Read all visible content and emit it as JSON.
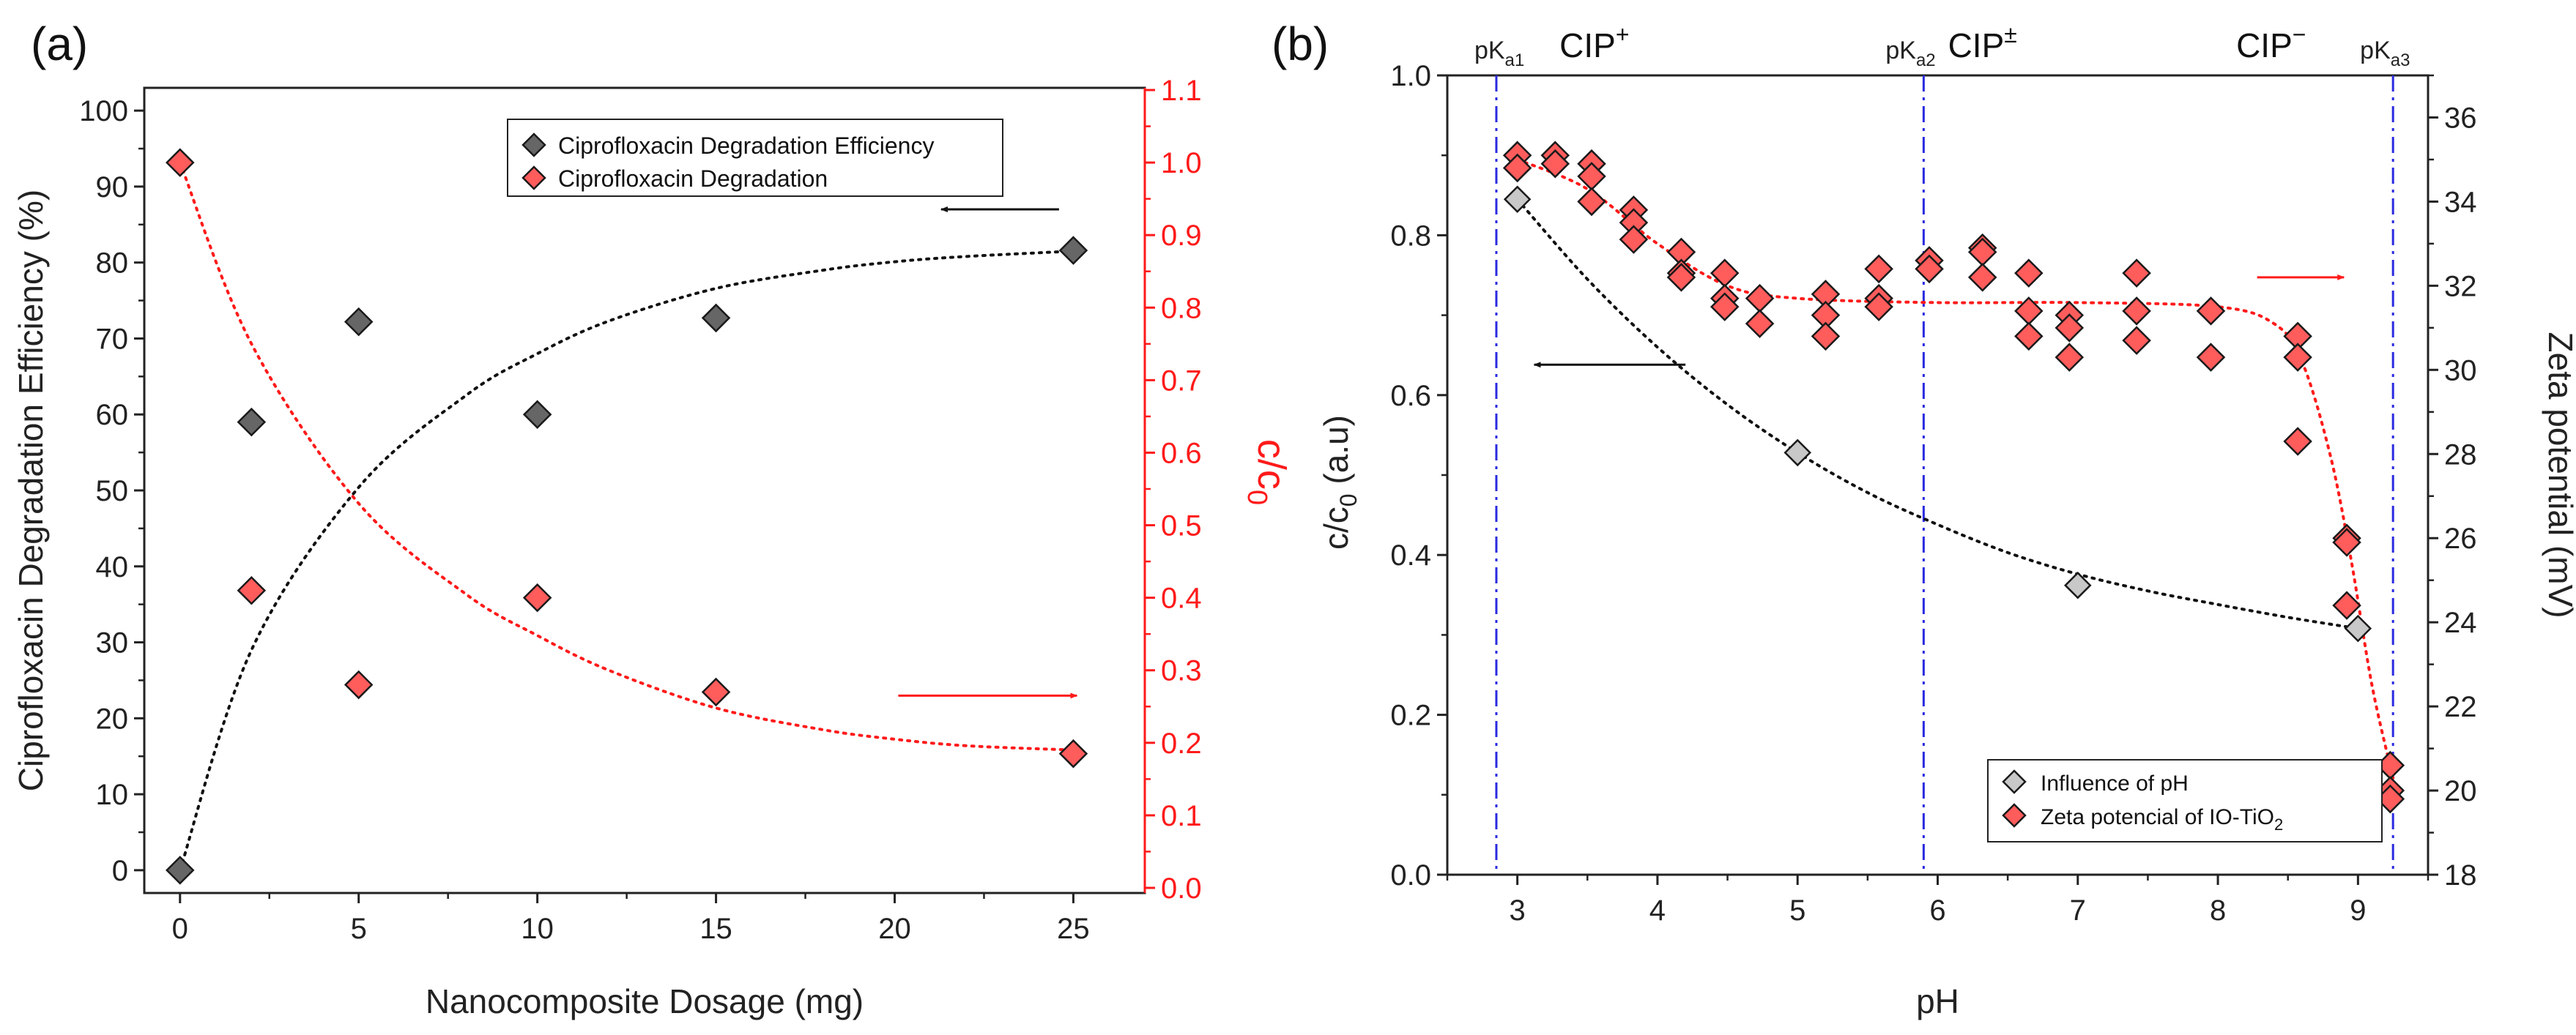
{
  "panels": {
    "a": {
      "label": "(a)"
    },
    "b": {
      "label": "(b)"
    }
  },
  "colors": {
    "black": "#111111",
    "red": "#ff1a1a",
    "dark_marker": "#666666",
    "red_marker": "#ff5c5c",
    "blue": "#2a2ae0",
    "grey_marker": "#c8c8c8"
  },
  "chart_data": [
    {
      "id": "a",
      "type": "scatter",
      "title": "",
      "xlabel": "Nanocomposite Dosage (mg)",
      "ylabel": "Ciprofloxacin Degradation Efficiency (%)",
      "ylabel_right_main": "c/c",
      "ylabel_right_sub": "0",
      "xlim": [
        -1,
        27
      ],
      "ylim": [
        -3,
        103
      ],
      "ylim_right": [
        0,
        1.1
      ],
      "x_ticks": [
        "0",
        "5",
        "10",
        "15",
        "20",
        "25"
      ],
      "y_ticks": [
        "0",
        "10",
        "20",
        "30",
        "40",
        "50",
        "60",
        "70",
        "80",
        "90",
        "100"
      ],
      "y_right_ticks": [
        "0.0",
        "0.1",
        "0.2",
        "0.3",
        "0.4",
        "0.5",
        "0.6",
        "0.7",
        "0.8",
        "0.9",
        "1.0",
        "1.1"
      ],
      "legend_position": "top-center",
      "series": [
        {
          "name": "Ciprofloxacin Degradation Efficiency",
          "axis": "left",
          "marker": "diamond",
          "x": [
            0,
            2,
            5,
            10,
            15,
            25
          ],
          "y": [
            0,
            59,
            72.2,
            60,
            72.7,
            81.6
          ],
          "fit": {
            "x": [
              0,
              2,
              5,
              8,
              10,
              12,
              15,
              18,
              20,
              22,
              25
            ],
            "y": [
              0,
              29,
              50.4,
              62.5,
              68,
              72.3,
              76.6,
              79,
              80.1,
              80.8,
              81.5
            ]
          }
        },
        {
          "name": "Ciprofloxacin Degradation",
          "axis": "right",
          "marker": "diamond",
          "x": [
            0,
            2,
            5,
            10,
            15,
            25
          ],
          "y": [
            1.0,
            0.41,
            0.28,
            0.4,
            0.27,
            0.185
          ],
          "fit": {
            "x": [
              0,
              2,
              5,
              8,
              10,
              12,
              15,
              18,
              20,
              22,
              25
            ],
            "y": [
              1.0,
              0.75,
              0.53,
              0.405,
              0.348,
              0.3,
              0.248,
              0.218,
              0.205,
              0.196,
              0.19
            ]
          }
        }
      ],
      "annotations": [
        {
          "type": "arrow",
          "direction": "left",
          "axis": "left",
          "x_from": 24.6,
          "x_to": 21.3,
          "y": 87,
          "meaning": "efficiency series uses left axis"
        },
        {
          "type": "arrow",
          "direction": "right",
          "axis": "right",
          "x_from": 20.1,
          "x_to": 25.1,
          "y": 0.265,
          "meaning": "c/c0 series uses right axis"
        }
      ]
    },
    {
      "id": "b",
      "type": "scatter",
      "title": "",
      "xlabel": "pH",
      "ylabel_main": "c/c",
      "ylabel_sub": "0",
      "ylabel_suffix": " (a.u)",
      "ylabel_right": "Zeta potential (mV)",
      "xlim": [
        2.5,
        9.5
      ],
      "ylim": [
        0,
        1.0
      ],
      "ylim_right": [
        18,
        37
      ],
      "x_ticks": [
        "3",
        "4",
        "5",
        "6",
        "7",
        "8",
        "9"
      ],
      "y_ticks": [
        "0.0",
        "0.2",
        "0.4",
        "0.6",
        "0.8",
        "1.0"
      ],
      "y_right_ticks": [
        "18",
        "20",
        "22",
        "24",
        "26",
        "28",
        "30",
        "32",
        "34",
        "36"
      ],
      "legend_position": "bottom-right",
      "series": [
        {
          "name": "Influence of pH",
          "axis": "left",
          "marker": "diamond",
          "x": [
            3,
            5,
            7,
            9
          ],
          "y": [
            0.845,
            0.528,
            0.362,
            0.308
          ],
          "fit": {
            "x": [
              3,
              3.5,
              4,
              4.5,
              5,
              5.5,
              6,
              6.5,
              7,
              7.5,
              8,
              8.5,
              9
            ],
            "y": [
              0.845,
              0.745,
              0.66,
              0.588,
              0.528,
              0.478,
              0.438,
              0.403,
              0.376,
              0.355,
              0.338,
              0.322,
              0.308
            ]
          }
        },
        {
          "name": "Zeta potencial of IO-TiO",
          "name_subscript": "2",
          "axis": "right",
          "marker": "diamond",
          "x": [
            3,
            3,
            3.27,
            3.27,
            3.53,
            3.53,
            3.53,
            3.83,
            3.83,
            3.83,
            4.17,
            4.17,
            4.17,
            4.48,
            4.48,
            4.48,
            4.73,
            4.73,
            5.2,
            5.2,
            5.2,
            5.58,
            5.58,
            5.58,
            5.94,
            5.94,
            6.32,
            6.32,
            6.32,
            6.65,
            6.65,
            6.65,
            6.94,
            6.94,
            6.94,
            7.42,
            7.42,
            7.42,
            7.95,
            7.95,
            8.57,
            8.57,
            8.57,
            8.92,
            8.92,
            8.92,
            9.23,
            9.23,
            9.23
          ],
          "y": [
            35.1,
            34.8,
            35.1,
            34.9,
            34.9,
            34.6,
            34.0,
            33.8,
            33.5,
            33.1,
            32.8,
            32.3,
            32.2,
            32.3,
            31.7,
            31.5,
            31.7,
            31.1,
            31.8,
            31.3,
            30.8,
            32.4,
            31.7,
            31.5,
            32.6,
            32.4,
            32.9,
            32.8,
            32.2,
            32.3,
            31.4,
            30.8,
            31.3,
            31.0,
            30.3,
            32.3,
            31.4,
            30.7,
            31.4,
            30.3,
            30.8,
            30.3,
            28.3,
            26.0,
            25.9,
            24.4,
            20.6,
            20.0,
            19.8
          ],
          "fit": {
            "x": [
              3,
              3.5,
              4,
              4.5,
              5,
              6,
              7,
              8,
              8.4,
              8.6,
              8.8,
              8.95,
              9.1,
              9.25
            ],
            "y": [
              35.0,
              34.3,
              33.0,
              32.0,
              31.7,
              31.6,
              31.6,
              31.5,
              31.1,
              30.2,
              28.0,
              25.5,
              22.5,
              20.3
            ]
          }
        }
      ],
      "reference_lines": [
        {
          "x": 2.85,
          "label_main": "pK",
          "label_sub": "a1"
        },
        {
          "x": 5.9,
          "label_main": "pK",
          "label_sub": "a2"
        },
        {
          "x": 9.25,
          "label_main": "pK",
          "label_sub": "a3"
        }
      ],
      "species_labels": [
        {
          "text": "CIP",
          "superscript": "+",
          "x": 3.55
        },
        {
          "text": "CIP",
          "superscript": "±",
          "x": 6.32
        },
        {
          "text": "CIP",
          "superscript": "−",
          "x": 8.38
        }
      ],
      "annotations": [
        {
          "type": "arrow",
          "direction": "left",
          "axis": "left",
          "x_from": 4.2,
          "x_to": 3.12,
          "y": 0.638,
          "meaning": "Influence of pH uses left axis"
        },
        {
          "type": "arrow",
          "direction": "right",
          "axis": "right",
          "x_from": 8.28,
          "x_to": 8.9,
          "y": 32.2,
          "meaning": "zeta potential uses right axis"
        }
      ]
    }
  ]
}
